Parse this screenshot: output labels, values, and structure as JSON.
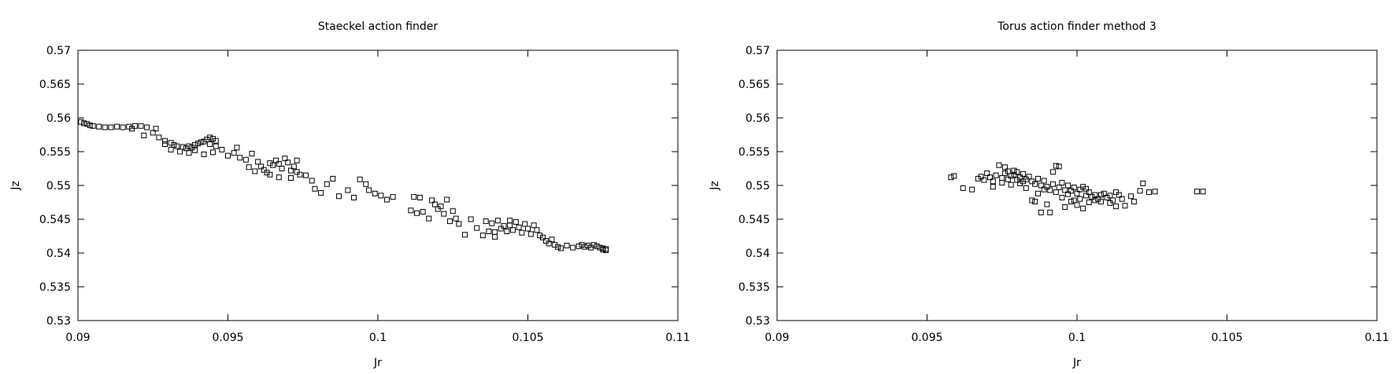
{
  "chart_data": [
    {
      "type": "scatter",
      "title": "Staeckel action finder",
      "xlabel": "Jr",
      "ylabel": "Jz",
      "xlim": [
        0.09,
        0.11
      ],
      "ylim": [
        0.53,
        0.57
      ],
      "xticks": [
        "0.09",
        "0.095",
        "0.1",
        "0.105",
        "0.11"
      ],
      "yticks": [
        "0.53",
        "0.535",
        "0.54",
        "0.545",
        "0.55",
        "0.555",
        "0.56",
        "0.565",
        "0.57"
      ],
      "grid": false,
      "legend": "none",
      "marker": "open-square",
      "color": "#000000",
      "series": [
        {
          "points": [
            [
              0.0901,
              0.5594
            ],
            [
              0.0902,
              0.5592
            ],
            [
              0.0903,
              0.5591
            ],
            [
              0.0904,
              0.5589
            ],
            [
              0.0905,
              0.5588
            ],
            [
              0.0907,
              0.5587
            ],
            [
              0.0909,
              0.5586
            ],
            [
              0.0911,
              0.5586
            ],
            [
              0.0913,
              0.5587
            ],
            [
              0.0915,
              0.5586
            ],
            [
              0.0917,
              0.5587
            ],
            [
              0.0919,
              0.5588
            ],
            [
              0.0921,
              0.5588
            ],
            [
              0.0923,
              0.5586
            ],
            [
              0.0922,
              0.5574
            ],
            [
              0.0925,
              0.5578
            ],
            [
              0.0927,
              0.5571
            ],
            [
              0.0929,
              0.5566
            ],
            [
              0.0931,
              0.5563
            ],
            [
              0.0932,
              0.556
            ],
            [
              0.0933,
              0.5558
            ],
            [
              0.0935,
              0.5557
            ],
            [
              0.0936,
              0.5555
            ],
            [
              0.0937,
              0.5558
            ],
            [
              0.0938,
              0.5556
            ],
            [
              0.0939,
              0.556
            ],
            [
              0.094,
              0.5562
            ],
            [
              0.0941,
              0.5564
            ],
            [
              0.0942,
              0.5565
            ],
            [
              0.0943,
              0.5568
            ],
            [
              0.0944,
              0.5571
            ],
            [
              0.0945,
              0.5569
            ],
            [
              0.0946,
              0.5566
            ],
            [
              0.0931,
              0.5553
            ],
            [
              0.0934,
              0.555
            ],
            [
              0.0937,
              0.5548
            ],
            [
              0.0939,
              0.5552
            ],
            [
              0.0942,
              0.5546
            ],
            [
              0.0945,
              0.5549
            ],
            [
              0.0948,
              0.5553
            ],
            [
              0.095,
              0.5544
            ],
            [
              0.0952,
              0.5548
            ],
            [
              0.0954,
              0.5541
            ],
            [
              0.0956,
              0.5538
            ],
            [
              0.0957,
              0.5527
            ],
            [
              0.0958,
              0.5547
            ],
            [
              0.096,
              0.5535
            ],
            [
              0.0961,
              0.5528
            ],
            [
              0.0962,
              0.5523
            ],
            [
              0.0963,
              0.5519
            ],
            [
              0.0964,
              0.5533
            ],
            [
              0.0965,
              0.553
            ],
            [
              0.0966,
              0.5537
            ],
            [
              0.0967,
              0.5532
            ],
            [
              0.0968,
              0.5525
            ],
            [
              0.0969,
              0.554
            ],
            [
              0.097,
              0.5534
            ],
            [
              0.0971,
              0.5522
            ],
            [
              0.0972,
              0.5528
            ],
            [
              0.0973,
              0.552
            ],
            [
              0.0974,
              0.5516
            ],
            [
              0.0964,
              0.5516
            ],
            [
              0.0967,
              0.5512
            ],
            [
              0.0971,
              0.5511
            ],
            [
              0.0976,
              0.5515
            ],
            [
              0.0978,
              0.5507
            ],
            [
              0.0979,
              0.5495
            ],
            [
              0.0981,
              0.5489
            ],
            [
              0.0983,
              0.5502
            ],
            [
              0.0985,
              0.551
            ],
            [
              0.0987,
              0.5484
            ],
            [
              0.099,
              0.5493
            ],
            [
              0.0992,
              0.5482
            ],
            [
              0.0994,
              0.5509
            ],
            [
              0.0996,
              0.5502
            ],
            [
              0.0997,
              0.5493
            ],
            [
              0.0999,
              0.5488
            ],
            [
              0.1001,
              0.5485
            ],
            [
              0.1003,
              0.5479
            ],
            [
              0.1005,
              0.5483
            ],
            [
              0.1011,
              0.5463
            ],
            [
              0.1013,
              0.5459
            ],
            [
              0.1014,
              0.5482
            ],
            [
              0.1015,
              0.5461
            ],
            [
              0.1017,
              0.5451
            ],
            [
              0.1018,
              0.5478
            ],
            [
              0.1019,
              0.5472
            ],
            [
              0.102,
              0.5465
            ],
            [
              0.1021,
              0.5469
            ],
            [
              0.1022,
              0.5458
            ],
            [
              0.1023,
              0.5479
            ],
            [
              0.1025,
              0.5462
            ],
            [
              0.1026,
              0.5451
            ],
            [
              0.1027,
              0.5443
            ],
            [
              0.1029,
              0.5427
            ],
            [
              0.1031,
              0.545
            ],
            [
              0.1033,
              0.5437
            ],
            [
              0.1035,
              0.5426
            ],
            [
              0.1036,
              0.5447
            ],
            [
              0.1037,
              0.5432
            ],
            [
              0.1038,
              0.5444
            ],
            [
              0.1039,
              0.5431
            ],
            [
              0.104,
              0.5448
            ],
            [
              0.1041,
              0.5436
            ],
            [
              0.1042,
              0.544
            ],
            [
              0.1043,
              0.5432
            ],
            [
              0.1044,
              0.5441
            ],
            [
              0.1045,
              0.5434
            ],
            [
              0.1046,
              0.5446
            ],
            [
              0.1047,
              0.5438
            ],
            [
              0.1048,
              0.543
            ],
            [
              0.1049,
              0.5443
            ],
            [
              0.105,
              0.5436
            ],
            [
              0.1051,
              0.5428
            ],
            [
              0.1052,
              0.5441
            ],
            [
              0.1053,
              0.5434
            ],
            [
              0.1054,
              0.5426
            ],
            [
              0.1055,
              0.5423
            ],
            [
              0.1056,
              0.5418
            ],
            [
              0.1057,
              0.5414
            ],
            [
              0.1058,
              0.542
            ],
            [
              0.1059,
              0.5412
            ],
            [
              0.106,
              0.5409
            ],
            [
              0.1061,
              0.5407
            ],
            [
              0.1063,
              0.5411
            ],
            [
              0.1065,
              0.5408
            ],
            [
              0.1067,
              0.541
            ],
            [
              0.1068,
              0.5412
            ],
            [
              0.1069,
              0.5409
            ],
            [
              0.107,
              0.5411
            ],
            [
              0.1071,
              0.5408
            ],
            [
              0.1072,
              0.5412
            ],
            [
              0.1073,
              0.541
            ],
            [
              0.1074,
              0.5408
            ],
            [
              0.1075,
              0.5407
            ],
            [
              0.1076,
              0.5406
            ],
            [
              0.1076,
              0.5404
            ],
            [
              0.1075,
              0.5405
            ],
            [
              0.0918,
              0.5584
            ],
            [
              0.0926,
              0.5584
            ],
            [
              0.0946,
              0.5558
            ],
            [
              0.0953,
              0.5556
            ],
            [
              0.0929,
              0.5561
            ],
            [
              0.0973,
              0.5537
            ],
            [
              0.0944,
              0.5561
            ],
            [
              0.0959,
              0.5521
            ],
            [
              0.1012,
              0.5483
            ],
            [
              0.1024,
              0.5447
            ],
            [
              0.1039,
              0.5424
            ],
            [
              0.1044,
              0.5448
            ]
          ]
        }
      ]
    },
    {
      "type": "scatter",
      "title": "Torus action finder method 3",
      "xlabel": "Jr",
      "ylabel": "Jz",
      "xlim": [
        0.09,
        0.11
      ],
      "ylim": [
        0.53,
        0.57
      ],
      "xticks": [
        "0.09",
        "0.095",
        "0.1",
        "0.105",
        "0.11"
      ],
      "yticks": [
        "0.53",
        "0.535",
        "0.54",
        "0.545",
        "0.55",
        "0.555",
        "0.56",
        "0.565",
        "0.57"
      ],
      "grid": false,
      "legend": "none",
      "marker": "open-square",
      "color": "#000000",
      "series": [
        {
          "points": [
            [
              0.0958,
              0.5512
            ],
            [
              0.0959,
              0.5514
            ],
            [
              0.0962,
              0.5496
            ],
            [
              0.0965,
              0.5494
            ],
            [
              0.0967,
              0.551
            ],
            [
              0.0968,
              0.5513
            ],
            [
              0.0969,
              0.5508
            ],
            [
              0.097,
              0.5518
            ],
            [
              0.0971,
              0.5512
            ],
            [
              0.0972,
              0.5506
            ],
            [
              0.0972,
              0.5498
            ],
            [
              0.0973,
              0.5515
            ],
            [
              0.0974,
              0.553
            ],
            [
              0.0975,
              0.5511
            ],
            [
              0.0975,
              0.5504
            ],
            [
              0.0976,
              0.5518
            ],
            [
              0.0976,
              0.5527
            ],
            [
              0.0977,
              0.5509
            ],
            [
              0.0978,
              0.5514
            ],
            [
              0.0978,
              0.5501
            ],
            [
              0.0979,
              0.5516
            ],
            [
              0.098,
              0.5508
            ],
            [
              0.098,
              0.552
            ],
            [
              0.0981,
              0.5512
            ],
            [
              0.0981,
              0.5503
            ],
            [
              0.0982,
              0.5517
            ],
            [
              0.0983,
              0.5509
            ],
            [
              0.0983,
              0.5496
            ],
            [
              0.0984,
              0.5513
            ],
            [
              0.0985,
              0.5506
            ],
            [
              0.0985,
              0.5478
            ],
            [
              0.0986,
              0.5476
            ],
            [
              0.0987,
              0.551
            ],
            [
              0.0987,
              0.5488
            ],
            [
              0.0988,
              0.55
            ],
            [
              0.0988,
              0.546
            ],
            [
              0.0989,
              0.5507
            ],
            [
              0.099,
              0.5498
            ],
            [
              0.099,
              0.5472
            ],
            [
              0.0991,
              0.5493
            ],
            [
              0.0991,
              0.546
            ],
            [
              0.0992,
              0.552
            ],
            [
              0.0992,
              0.5502
            ],
            [
              0.0993,
              0.5529
            ],
            [
              0.0993,
              0.549
            ],
            [
              0.0994,
              0.5528
            ],
            [
              0.0994,
              0.5497
            ],
            [
              0.0995,
              0.5482
            ],
            [
              0.0996,
              0.5493
            ],
            [
              0.0996,
              0.5468
            ],
            [
              0.0997,
              0.55
            ],
            [
              0.0997,
              0.5487
            ],
            [
              0.0998,
              0.5492
            ],
            [
              0.0998,
              0.5476
            ],
            [
              0.0999,
              0.5497
            ],
            [
              0.1,
              0.5488
            ],
            [
              0.1,
              0.5471
            ],
            [
              0.1001,
              0.5494
            ],
            [
              0.1001,
              0.548
            ],
            [
              0.1002,
              0.5498
            ],
            [
              0.1002,
              0.5466
            ],
            [
              0.1003,
              0.5485
            ],
            [
              0.1004,
              0.549
            ],
            [
              0.1004,
              0.5475
            ],
            [
              0.1005,
              0.5483
            ],
            [
              0.1006,
              0.5478
            ],
            [
              0.1006,
              0.5486
            ],
            [
              0.1007,
              0.548
            ],
            [
              0.1008,
              0.5476
            ],
            [
              0.1009,
              0.5488
            ],
            [
              0.101,
              0.5482
            ],
            [
              0.1011,
              0.5485
            ],
            [
              0.1012,
              0.5478
            ],
            [
              0.1013,
              0.549
            ],
            [
              0.1013,
              0.5469
            ],
            [
              0.1014,
              0.5486
            ],
            [
              0.1015,
              0.548
            ],
            [
              0.1016,
              0.547
            ],
            [
              0.1018,
              0.5484
            ],
            [
              0.1019,
              0.5476
            ],
            [
              0.1021,
              0.5492
            ],
            [
              0.1022,
              0.5503
            ],
            [
              0.1024,
              0.549
            ],
            [
              0.1026,
              0.5491
            ],
            [
              0.104,
              0.5491
            ],
            [
              0.1042,
              0.5491
            ],
            [
              0.0977,
              0.5521
            ],
            [
              0.0979,
              0.5522
            ],
            [
              0.0982,
              0.5506
            ],
            [
              0.0986,
              0.5502
            ],
            [
              0.0989,
              0.5494
            ],
            [
              0.0995,
              0.5504
            ],
            [
              0.0999,
              0.5478
            ],
            [
              0.1003,
              0.5495
            ],
            [
              0.1008,
              0.5486
            ],
            [
              0.1011,
              0.5474
            ]
          ]
        }
      ]
    }
  ]
}
